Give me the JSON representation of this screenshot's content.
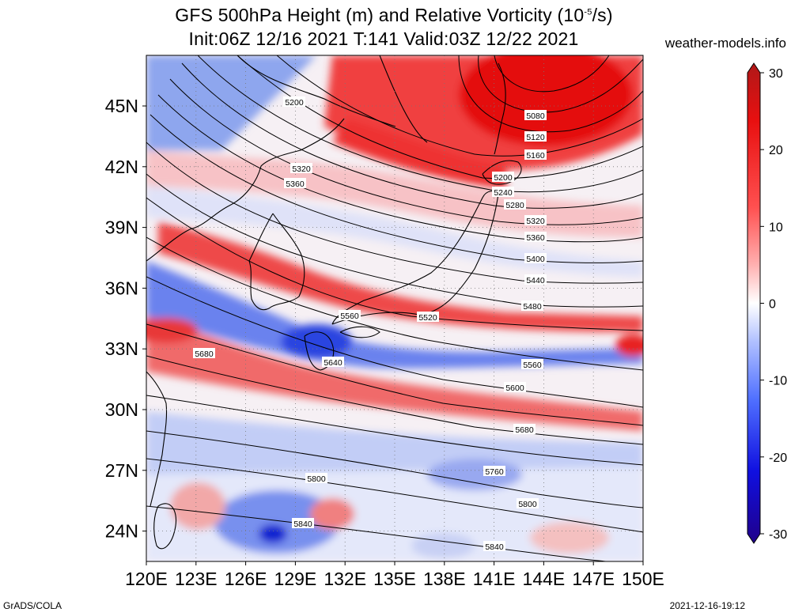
{
  "title_line1": "GFS 500hPa Height (m) and Relative Vorticity (10",
  "title_exp": "-5",
  "title_unit_end": "/s)",
  "title_line2": "Init:06Z 12/16 2021 T:141 Valid:03Z 12/22 2021",
  "website": "weather-models.info",
  "footer_left": "GrADS/COLA",
  "footer_right": "2021-12-16-19:12",
  "map": {
    "lon_labels": [
      "120E",
      "123E",
      "126E",
      "129E",
      "132E",
      "135E",
      "138E",
      "141E",
      "144E",
      "147E",
      "150E"
    ],
    "lon_values": [
      120,
      123,
      126,
      129,
      132,
      135,
      138,
      141,
      144,
      147,
      150
    ],
    "lat_labels": [
      "24N",
      "27N",
      "30N",
      "33N",
      "36N",
      "39N",
      "42N",
      "45N"
    ],
    "lat_values": [
      24,
      27,
      30,
      33,
      36,
      39,
      42,
      45
    ],
    "lon_range": [
      120,
      150
    ],
    "lat_range": [
      22.5,
      47.5
    ],
    "contour_labels": [
      "5080",
      "5120",
      "5160",
      "5200",
      "5200",
      "5240",
      "5280",
      "5320",
      "5320",
      "5360",
      "5360",
      "5400",
      "5440",
      "5480",
      "5520",
      "5560",
      "5560",
      "5600",
      "5640",
      "5680",
      "5680",
      "5760",
      "5800",
      "5800",
      "5840",
      "5840"
    ]
  },
  "colorbar": {
    "labels": [
      "30",
      "20",
      "10",
      "0",
      "-10",
      "-20",
      "-30"
    ],
    "values": [
      30,
      20,
      10,
      0,
      -10,
      -20,
      -30
    ],
    "colors": [
      "#b01818",
      "#e81010",
      "#ff5050",
      "#ffa8a8",
      "#ffffff",
      "#a8b8ff",
      "#5070ff",
      "#1010e0",
      "#20008a"
    ]
  }
}
